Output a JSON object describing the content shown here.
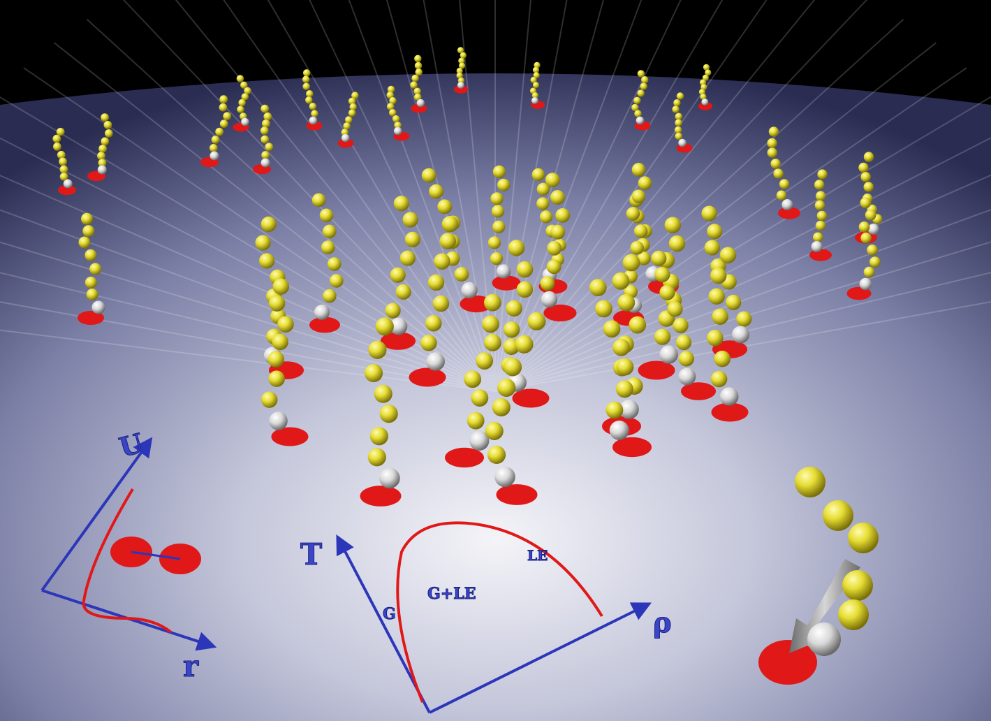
{
  "potential_plot": {
    "y_axis_label": "U",
    "x_axis_label": "r"
  },
  "phase_diagram": {
    "y_axis_label": "T",
    "x_axis_label": "ρ",
    "region_labels": [
      "G",
      "G+LE",
      "LE"
    ]
  },
  "colors": {
    "background_top": "#000000",
    "surface": "#8e92b4",
    "surface_light": "#e8e9f2",
    "bead": "#e6e03a",
    "head_bead": "#e4e4e4",
    "anchor_disc": "#e01818",
    "axis": "#2c36b8",
    "curve": "#e01818",
    "arrow": "#9a9a9a"
  },
  "icons": [
    "polymer-chain",
    "anchor-disc",
    "tilt-arrow"
  ]
}
